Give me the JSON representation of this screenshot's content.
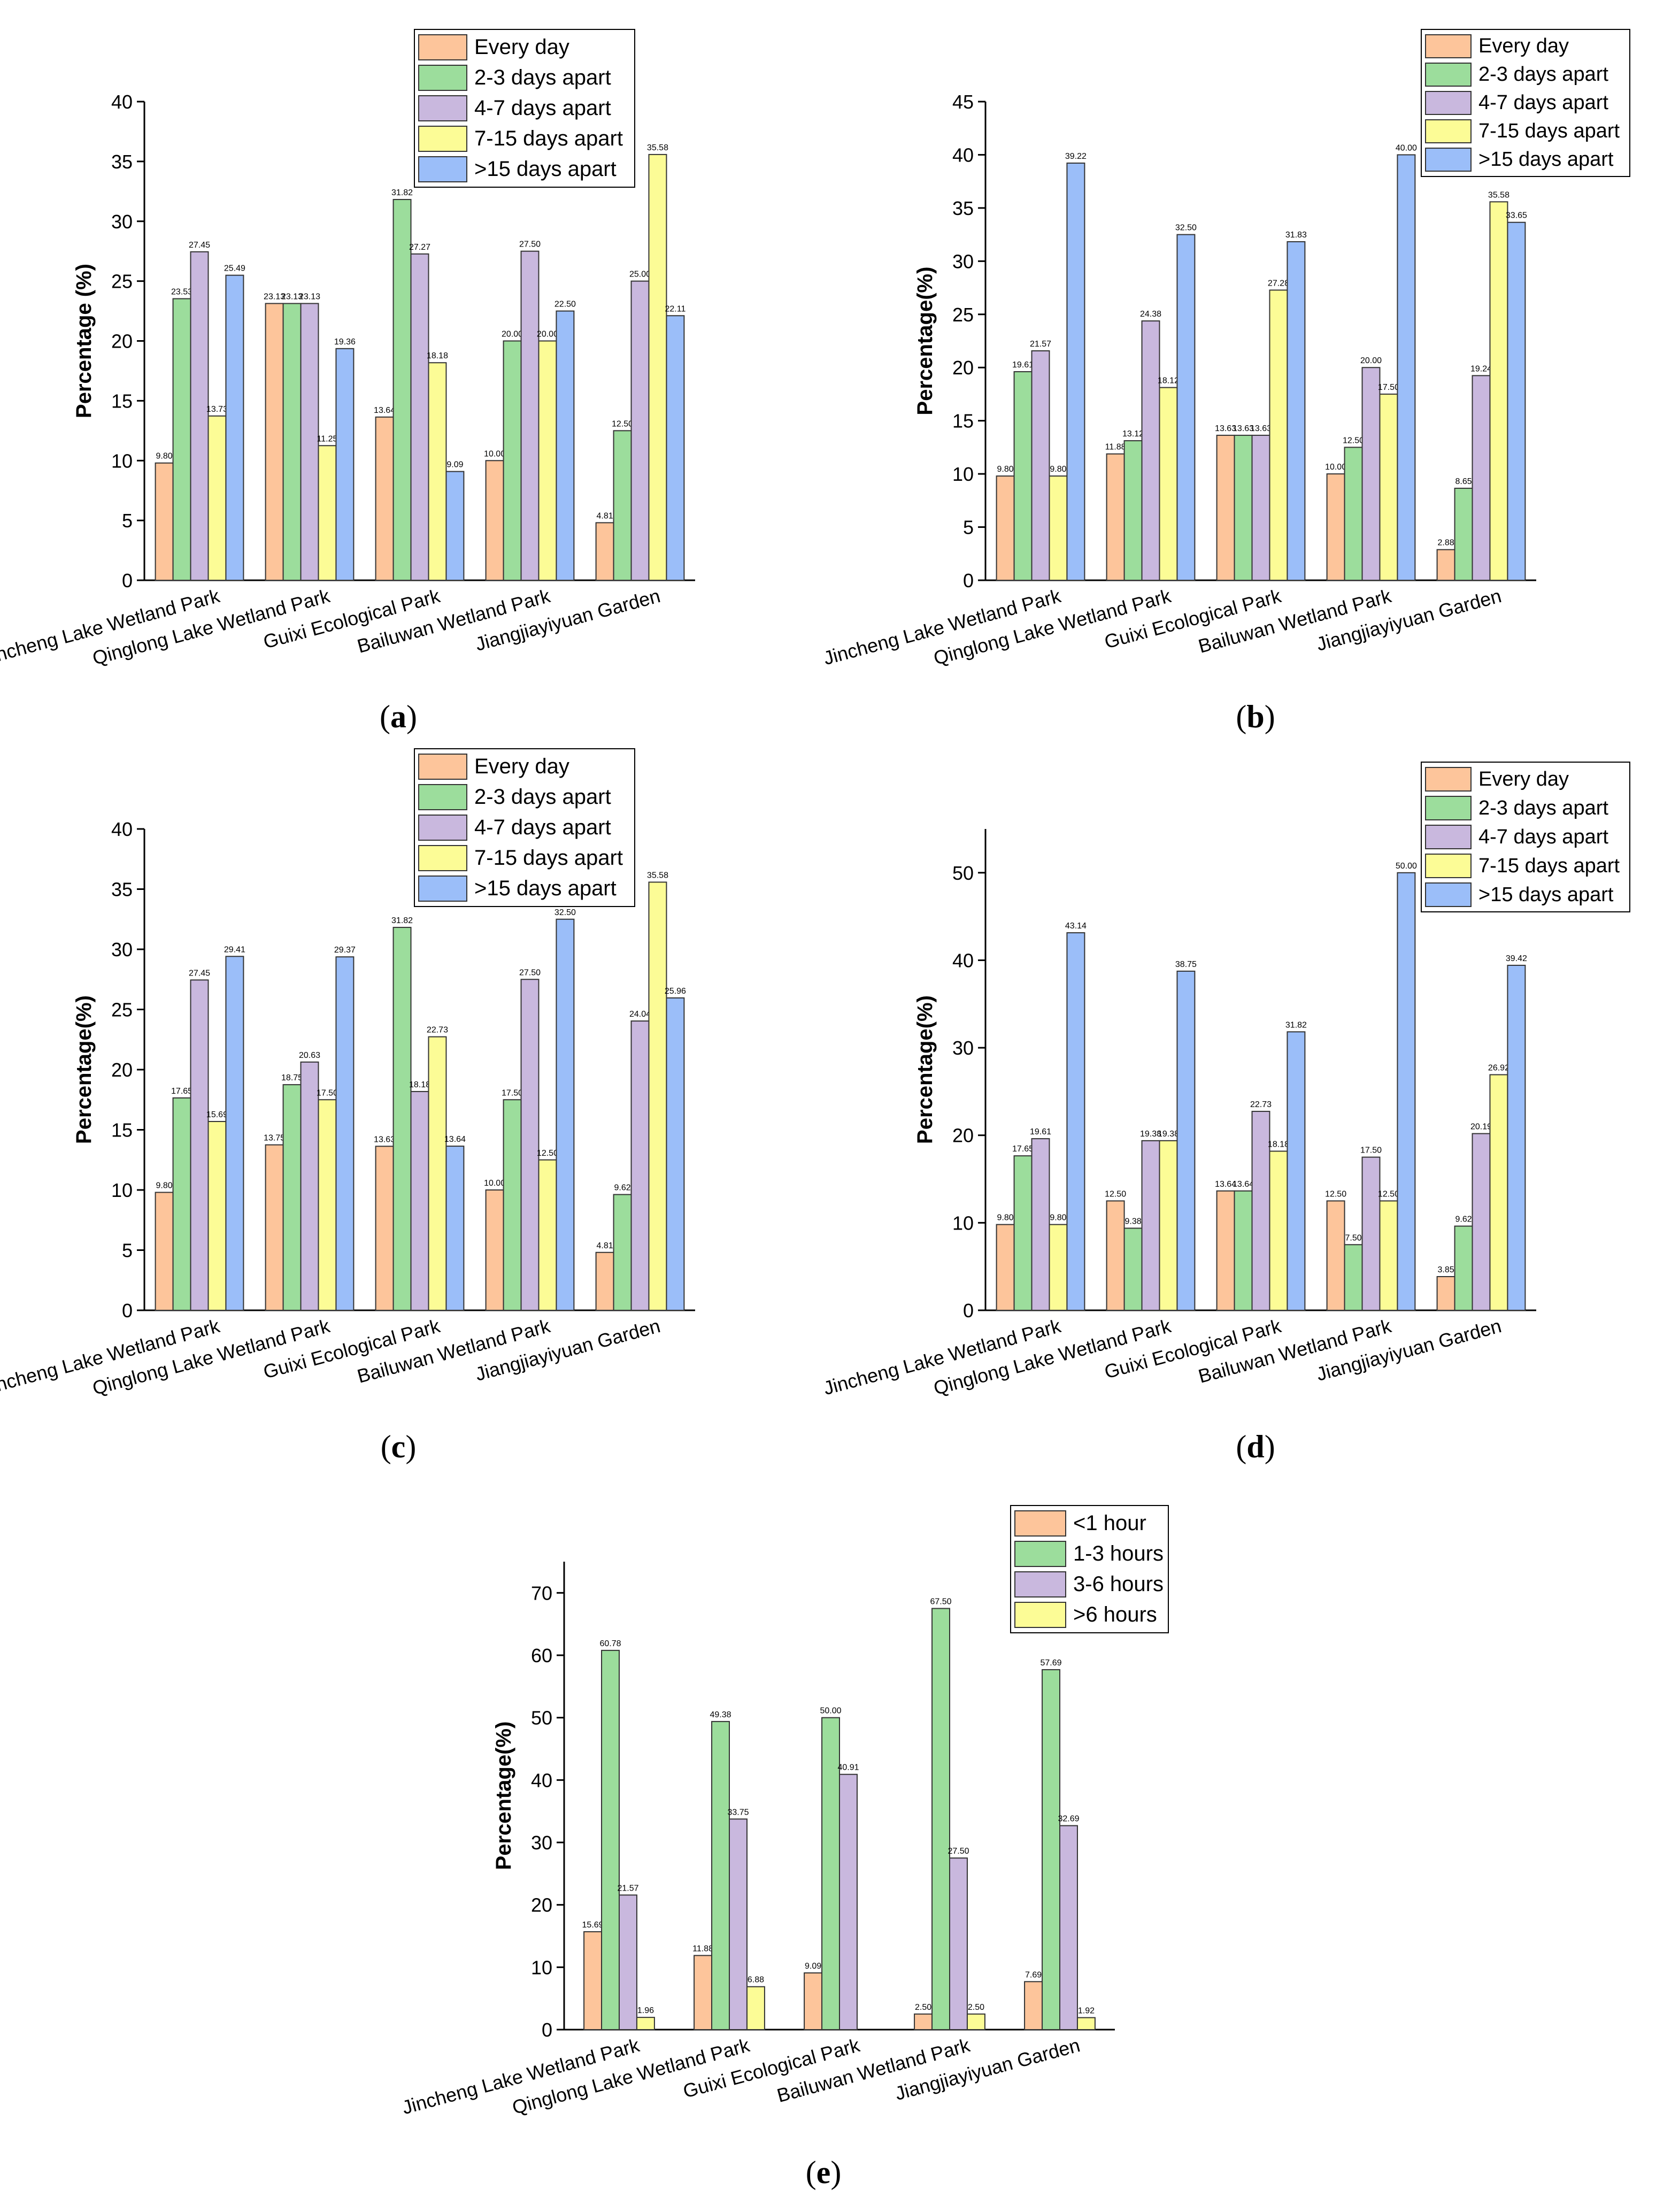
{
  "chart_data": [
    {
      "panel_label": "(a)",
      "type": "bar",
      "categories": [
        "Jincheng Lake Wetland Park",
        "Qinglong Lake Wetland Park",
        "Guixi Ecological Park",
        "Bailuwan Wetland Park",
        "Jiangjiayiyuan Garden"
      ],
      "series": [
        {
          "name": "Every day",
          "values": [
            9.8,
            23.13,
            13.64,
            10.0,
            4.81
          ]
        },
        {
          "name": "2-3 days apart",
          "values": [
            23.53,
            23.13,
            31.82,
            20.0,
            12.5
          ]
        },
        {
          "name": "4-7 days apart",
          "values": [
            27.45,
            23.13,
            27.27,
            27.5,
            25.0
          ]
        },
        {
          "name": "7-15 days apart",
          "values": [
            13.73,
            11.25,
            18.18,
            20.0,
            35.58
          ]
        },
        {
          "name": ">15 days apart",
          "values": [
            25.49,
            19.36,
            9.09,
            22.5,
            22.11
          ]
        }
      ],
      "value_labels": [
        [
          "9.80",
          "23.53",
          "27.45",
          "13.73",
          "25.49"
        ],
        [
          "23.13",
          "23.13",
          "23.13",
          "11.25",
          "19.36"
        ],
        [
          "13.64",
          "31.82",
          "27.27",
          "18.18",
          "9.09"
        ],
        [
          "10.00",
          "20.00",
          "27.50",
          "20.00",
          "22.50"
        ],
        [
          "4.81",
          "12.50",
          "25.00",
          "35.58",
          "22.11"
        ]
      ],
      "ylabel": "Percentage (%)",
      "ylim": [
        0,
        40
      ],
      "yticks": [
        0,
        5,
        10,
        15,
        20,
        25,
        30,
        35,
        40
      ],
      "legend_position": "top-right"
    },
    {
      "panel_label": "(b)",
      "type": "bar",
      "categories": [
        "Jincheng Lake Wetland Park",
        "Qinglong Lake Wetland Park",
        "Guixi Ecological Park",
        "Bailuwan Wetland Park",
        "Jiangjiayiyuan Garden"
      ],
      "series": [
        {
          "name": "Every day",
          "values": [
            9.8,
            11.88,
            13.63,
            10.0,
            2.88
          ]
        },
        {
          "name": "2-3 days apart",
          "values": [
            19.61,
            13.12,
            13.63,
            12.5,
            8.65
          ]
        },
        {
          "name": "4-7 days apart",
          "values": [
            21.57,
            24.38,
            13.63,
            20.0,
            19.24
          ]
        },
        {
          "name": "7-15 days apart",
          "values": [
            9.8,
            18.12,
            27.28,
            17.5,
            35.58
          ]
        },
        {
          "name": ">15 days apart",
          "values": [
            39.22,
            32.5,
            31.83,
            40.0,
            33.65
          ]
        }
      ],
      "value_labels": [
        [
          "9.80",
          "19.61",
          "21.57",
          "9.80",
          "39.22"
        ],
        [
          "11.88",
          "13.12",
          "24.38",
          "18.12",
          "32.50"
        ],
        [
          "13.63",
          "13.63",
          "13.63",
          "27.28",
          "31.83"
        ],
        [
          "10.00",
          "12.50",
          "20.00",
          "17.50",
          "40.00"
        ],
        [
          "2.88",
          "8.65",
          "19.24",
          "35.58",
          "33.65"
        ]
      ],
      "ylabel": "Percentage(%)",
      "ylim": [
        0,
        45
      ],
      "yticks": [
        0,
        5,
        10,
        15,
        20,
        25,
        30,
        35,
        40,
        45
      ],
      "legend_position": "top-right"
    },
    {
      "panel_label": "(c)",
      "type": "bar",
      "categories": [
        "Jincheng Lake Wetland Park",
        "Qinglong Lake Wetland Park",
        "Guixi Ecological Park",
        "Bailuwan Wetland Park",
        "Jiangjiayiyuan Garden"
      ],
      "series": [
        {
          "name": "Every day",
          "values": [
            9.8,
            13.75,
            13.63,
            10.0,
            4.81
          ]
        },
        {
          "name": "2-3 days apart",
          "values": [
            17.65,
            18.75,
            31.82,
            17.5,
            9.62
          ]
        },
        {
          "name": "4-7 days apart",
          "values": [
            27.45,
            20.63,
            18.18,
            27.5,
            24.04
          ]
        },
        {
          "name": "7-15 days apart",
          "values": [
            15.69,
            17.5,
            22.73,
            12.5,
            35.58
          ]
        },
        {
          "name": ">15 days apart",
          "values": [
            29.41,
            29.37,
            13.64,
            32.5,
            25.96
          ]
        }
      ],
      "value_labels": [
        [
          "9.80",
          "17.65",
          "27.45",
          "15.69",
          "29.41"
        ],
        [
          "13.75",
          "18.75",
          "20.63",
          "17.50",
          "29.37"
        ],
        [
          "13.63",
          "31.82",
          "18.18",
          "22.73",
          "13.64"
        ],
        [
          "10.00",
          "17.50",
          "27.50",
          "12.50",
          "32.50"
        ],
        [
          "4.81",
          "9.62",
          "24.04",
          "35.58",
          "25.96"
        ]
      ],
      "ylabel": "Percentage(%)",
      "ylim": [
        0,
        40
      ],
      "yticks": [
        0,
        5,
        10,
        15,
        20,
        25,
        30,
        35,
        40
      ],
      "legend_position": "top-right"
    },
    {
      "panel_label": "(d)",
      "type": "bar",
      "categories": [
        "Jincheng Lake Wetland Park",
        "Qinglong Lake Wetland Park",
        "Guixi Ecological Park",
        "Bailuwan Wetland Park",
        "Jiangjiayiyuan Garden"
      ],
      "series": [
        {
          "name": "Every day",
          "values": [
            9.8,
            12.5,
            13.64,
            12.5,
            3.85
          ]
        },
        {
          "name": "2-3 days apart",
          "values": [
            17.65,
            9.38,
            13.64,
            7.5,
            9.62
          ]
        },
        {
          "name": "4-7 days apart",
          "values": [
            19.61,
            19.38,
            22.73,
            17.5,
            20.19
          ]
        },
        {
          "name": "7-15 days apart",
          "values": [
            9.8,
            19.38,
            18.18,
            12.5,
            26.92
          ]
        },
        {
          "name": ">15 days apart",
          "values": [
            43.14,
            38.75,
            31.82,
            50.0,
            39.42
          ]
        }
      ],
      "value_labels": [
        [
          "9.80",
          "17.65",
          "19.61",
          "9.80",
          "43.14"
        ],
        [
          "12.50",
          "9.38",
          "19.38",
          "19.38",
          "38.75"
        ],
        [
          "13.64",
          "13.64",
          "22.73",
          "18.18",
          "31.82"
        ],
        [
          "12.50",
          "7.50",
          "17.50",
          "12.50",
          "50.00"
        ],
        [
          "3.85",
          "9.62",
          "20.19",
          "26.92",
          "39.42"
        ]
      ],
      "ylabel": "Percentage(%)",
      "ylim": [
        0,
        55
      ],
      "yticks": [
        0,
        10,
        20,
        30,
        40,
        50
      ],
      "legend_position": "top-right"
    },
    {
      "panel_label": "(e)",
      "type": "bar",
      "categories": [
        "Jincheng Lake Wetland Park",
        "Qinglong Lake Wetland Park",
        "Guixi Ecological Park",
        "Bailuwan Wetland Park",
        "Jiangjiayiyuan Garden"
      ],
      "series": [
        {
          "name": "<1 hour",
          "values": [
            15.69,
            11.88,
            9.09,
            2.5,
            7.69
          ]
        },
        {
          "name": "1-3 hours",
          "values": [
            60.78,
            49.38,
            50.0,
            67.5,
            57.69
          ]
        },
        {
          "name": "3-6 hours",
          "values": [
            21.57,
            33.75,
            40.91,
            27.5,
            32.69
          ]
        },
        {
          "name": ">6 hours",
          "values": [
            1.96,
            6.88,
            0,
            2.5,
            1.92
          ]
        }
      ],
      "value_labels": [
        [
          "15.69",
          "60.78",
          "21.57",
          "1.96"
        ],
        [
          "11.88",
          "49.38",
          "33.75",
          "6.88"
        ],
        [
          "9.09",
          "50.00",
          "40.91",
          ""
        ],
        [
          "2.50",
          "67.50",
          "27.50",
          "2.50"
        ],
        [
          "7.69",
          "57.69",
          "32.69",
          "1.92"
        ]
      ],
      "ylabel": "Percentage(%)",
      "ylim": [
        0,
        75
      ],
      "yticks": [
        0,
        10,
        20,
        30,
        40,
        50,
        60,
        70
      ],
      "legend_position": "top-right"
    }
  ],
  "colors": {
    "series": [
      "#FDC59B",
      "#9CDD9C",
      "#C9B8DE",
      "#FCFC96",
      "#9BBEF9"
    ],
    "outline": "#333333"
  }
}
